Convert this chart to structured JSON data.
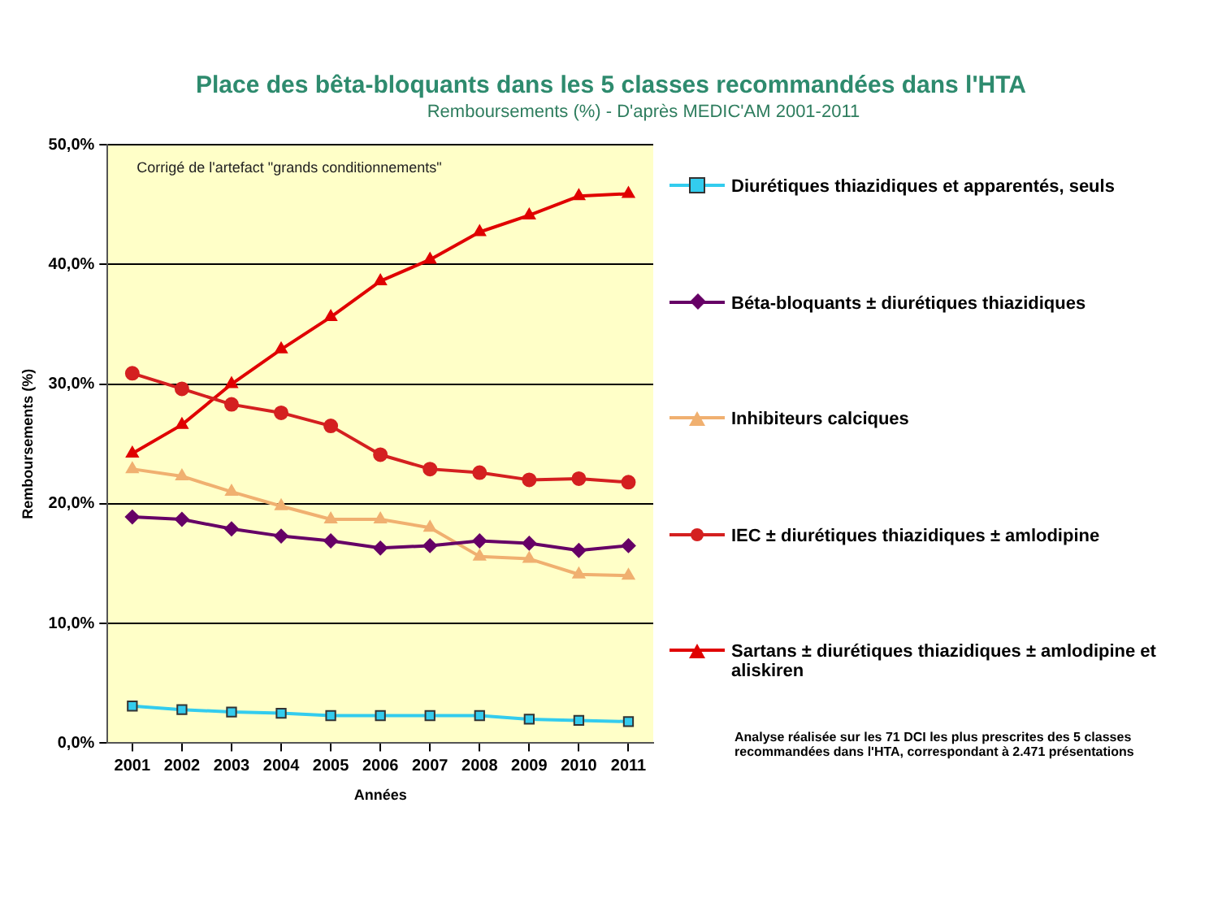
{
  "chart_data": {
    "type": "line",
    "title": "Place des bêta-bloquants dans les 5 classes recommandées dans l'HTA",
    "subtitle": "Remboursements (%) - D'après MEDIC'AM 2001-2011",
    "xlabel": "Années",
    "ylabel": "Remboursements (%)",
    "categories": [
      "2001",
      "2002",
      "2003",
      "2004",
      "2005",
      "2006",
      "2007",
      "2008",
      "2009",
      "2010",
      "2011"
    ],
    "series": [
      {
        "name": "Diurétiques thiazidiques et apparentés, seuls",
        "color": "#33ccee",
        "marker": "square",
        "values": [
          3.1,
          2.8,
          2.6,
          2.5,
          2.3,
          2.3,
          2.3,
          2.3,
          2.0,
          1.9,
          1.8
        ]
      },
      {
        "name": "Béta-bloquants ± diurétiques thiazidiques",
        "color": "#660066",
        "marker": "diamond",
        "values": [
          18.9,
          18.7,
          17.9,
          17.3,
          16.9,
          16.3,
          16.5,
          16.9,
          16.7,
          16.1,
          16.5
        ]
      },
      {
        "name": "Inhibiteurs calciques",
        "color": "#f0b070",
        "marker": "triangle",
        "values": [
          22.9,
          22.3,
          21.0,
          19.8,
          18.7,
          18.7,
          18.0,
          15.6,
          15.4,
          14.1,
          14.0
        ]
      },
      {
        "name": "IEC ± diurétiques thiazidiques ± amlodipine",
        "color": "#d42020",
        "marker": "circle",
        "values": [
          30.9,
          29.6,
          28.3,
          27.6,
          26.5,
          24.1,
          22.9,
          22.6,
          22.0,
          22.1,
          21.8
        ]
      },
      {
        "name": "Sartans ± diurétiques thiazidiques ± amlodipine et aliskiren",
        "color": "#e00000",
        "marker": "triangle",
        "values": [
          24.2,
          26.6,
          30.0,
          32.9,
          35.6,
          38.6,
          40.4,
          42.7,
          44.1,
          45.7,
          45.9
        ]
      }
    ],
    "ylim": [
      0,
      50
    ],
    "yticks": [
      {
        "value": 0,
        "label": "0,0%"
      },
      {
        "value": 10,
        "label": "10,0%"
      },
      {
        "value": 20,
        "label": "20,0%"
      },
      {
        "value": 30,
        "label": "30,0%"
      },
      {
        "value": 40,
        "label": "40,0%"
      },
      {
        "value": 50,
        "label": "50,0%"
      }
    ],
    "grid": "y",
    "legend": "right",
    "line_style": "solid",
    "annotations": [
      "Corrigé de l'artefact \"grands conditionnements\"",
      "Analyse réalisée sur les 71 DCI les plus prescrites des 5 classes recommandées dans l'HTA, correspondant à 2.471 présentations"
    ]
  }
}
